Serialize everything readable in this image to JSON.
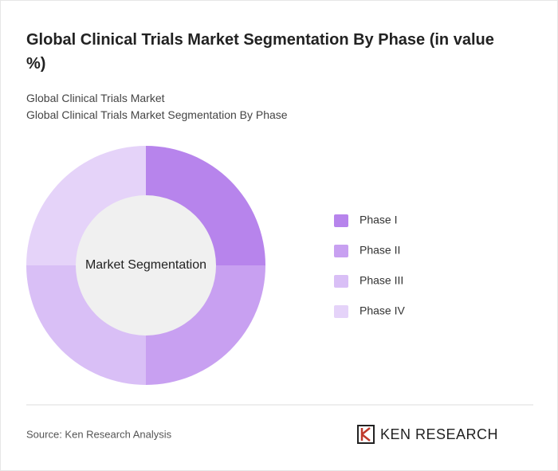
{
  "chart_data": {
    "type": "pie",
    "title": "Global Clinical Trials Market Segmentation By Phase (in value %)",
    "subtitle": [
      "Global Clinical Trials Market",
      "Global Clinical Trials Market Segmentation By Phase"
    ],
    "center_label": "Market Segmentation",
    "categories": [
      "Phase I",
      "Phase II",
      "Phase III",
      "Phase IV"
    ],
    "values": [
      25,
      25,
      25,
      25
    ],
    "colors": [
      "#b784ec",
      "#c8a0f1",
      "#d9bff6",
      "#e5d3f9"
    ],
    "legend": "right"
  },
  "footer": {
    "source": "Source: Ken Research Analysis",
    "logo": "KEN RESEARCH"
  }
}
